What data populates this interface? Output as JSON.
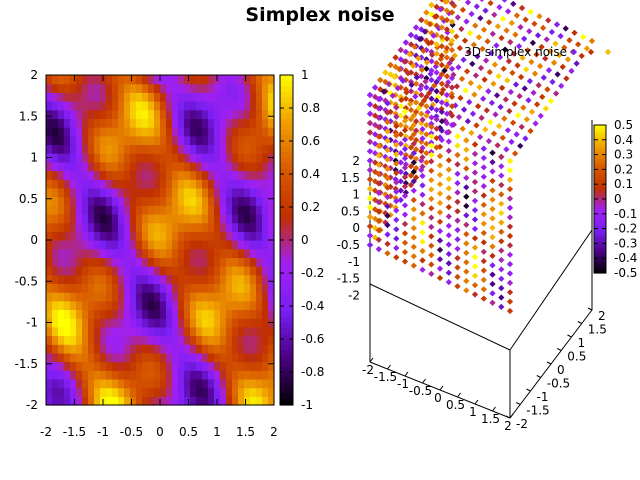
{
  "title": "Simplex noise",
  "chart_data": [
    {
      "type": "heatmap",
      "title": "",
      "xlabel": "",
      "ylabel": "",
      "x_ticks": [
        "-2",
        "-1.5",
        "-1",
        "-0.5",
        "0",
        "0.5",
        "1",
        "1.5",
        "2"
      ],
      "y_ticks": [
        "2",
        "1.5",
        "1",
        "0.5",
        "0",
        "-0.5",
        "-1",
        "-1.5",
        "-2"
      ],
      "xlim": [
        -2,
        2
      ],
      "ylim": [
        -2,
        2
      ],
      "colorbar_ticks": [
        "1",
        "0.8",
        "0.6",
        "0.4",
        "0.2",
        "0",
        "-0.2",
        "-0.4",
        "-0.6",
        "-0.8",
        "-1"
      ],
      "zlim": [
        -1,
        1
      ],
      "colormap": [
        "#000000",
        "#4b0082",
        "#7a1ff4",
        "#a020f0",
        "#c03000",
        "#d85a00",
        "#f0a000",
        "#ffff00"
      ],
      "grid": false
    },
    {
      "type": "scatter",
      "title": "",
      "legend": "3D simplex noise",
      "legend_position": "top-right",
      "x_ticks": [
        "-2",
        "-1.5",
        "-1",
        "-0.5",
        "0",
        "0.5",
        "1",
        "1.5",
        "2"
      ],
      "y_ticks": [
        "-2",
        "-1.5",
        "-1",
        "-0.5",
        "0",
        "0.5",
        "1",
        "1.5",
        "2"
      ],
      "z_ticks": [
        "2",
        "1.5",
        "1",
        "0.5",
        "0",
        "-0.5",
        "-1",
        "-1.5",
        "-2"
      ],
      "colorbar_ticks": [
        "0.5",
        "0.4",
        "0.3",
        "0.2",
        "0.1",
        "0",
        "-0.1",
        "-0.2",
        "-0.3",
        "-0.4",
        "-0.5"
      ],
      "xlim": [
        -2,
        2
      ],
      "ylim": [
        -2,
        2
      ],
      "zlim": [
        -2,
        2
      ],
      "clim": [
        -0.5,
        0.5
      ],
      "grid": false
    }
  ]
}
